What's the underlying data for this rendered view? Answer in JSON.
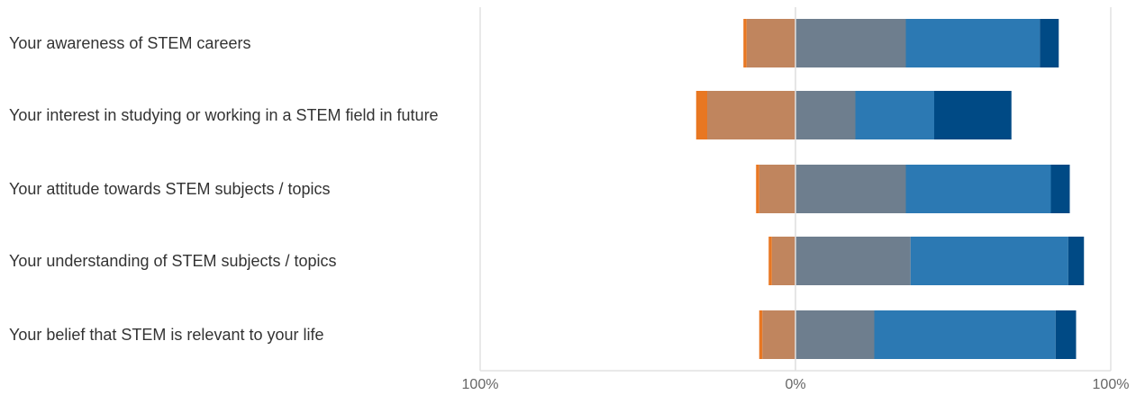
{
  "chart_data": {
    "type": "bar",
    "orientation": "horizontal",
    "stacking": "diverging",
    "categories": [
      "Your awareness of STEM careers",
      "Your interest in studying or working in a STEM field in future",
      "Your attitude towards STEM subjects / topics",
      "Your understanding of STEM subjects / topics",
      "Your belief that STEM is relevant to your life"
    ],
    "series": [
      {
        "side": "negative",
        "color": "#E87722",
        "values": [
          1,
          3.5,
          1,
          1,
          1
        ]
      },
      {
        "side": "negative",
        "color": "#C0855E",
        "values": [
          15.5,
          28,
          11.5,
          7.5,
          10.5
        ]
      },
      {
        "side": "positive",
        "color": "#6E7E8E",
        "values": [
          35,
          19,
          35,
          36.5,
          25
        ]
      },
      {
        "side": "positive",
        "color": "#2C79B3",
        "values": [
          42.5,
          25,
          46,
          50,
          57.5
        ]
      },
      {
        "side": "positive",
        "color": "#004A85",
        "values": [
          6,
          24.5,
          6,
          5,
          6.5
        ]
      }
    ],
    "xlim": [
      -100,
      100
    ],
    "xticks": [
      "100%",
      "0%",
      "100%"
    ],
    "grid": true,
    "legend": "none"
  }
}
